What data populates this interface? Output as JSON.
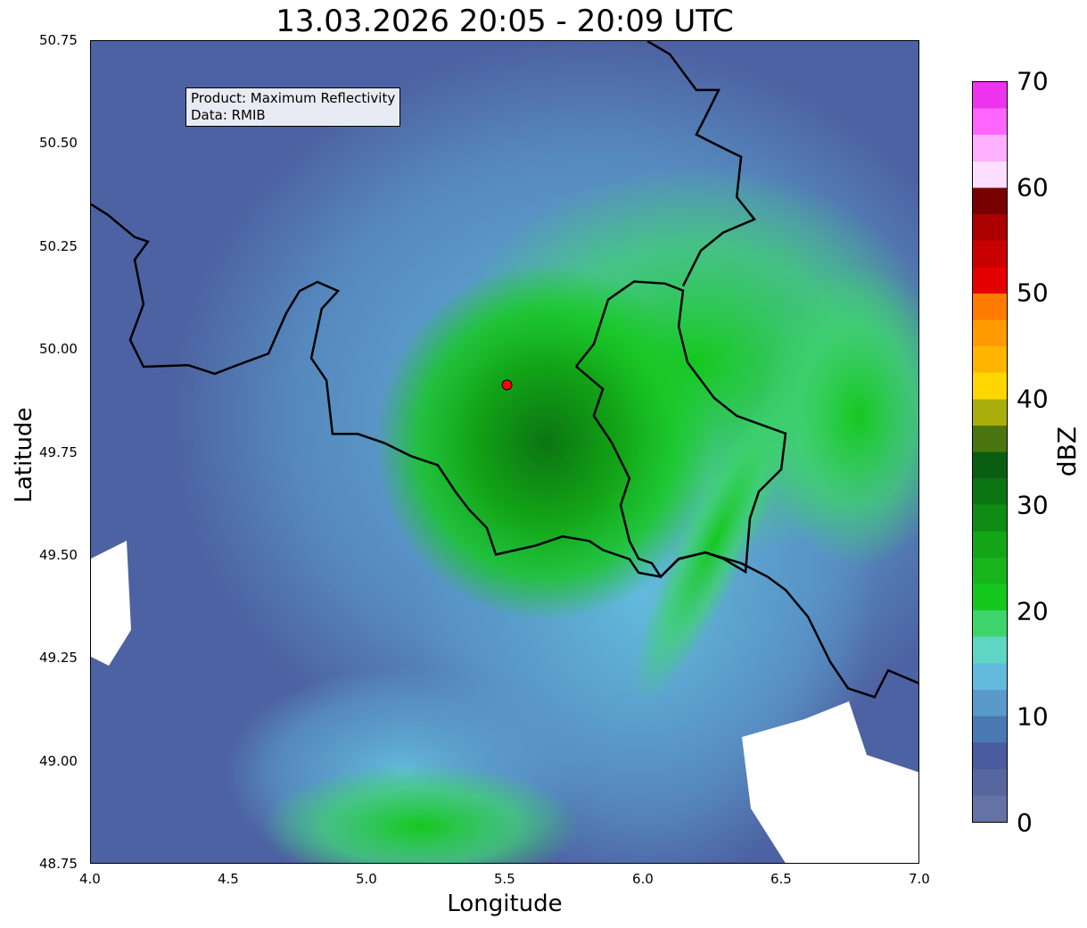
{
  "title": "13.03.2026 20:05 - 20:09 UTC",
  "info": {
    "product": "Product: Maximum Reflectivity",
    "data": "Data: RMIB"
  },
  "axes": {
    "xlabel": "Longitude",
    "ylabel": "Latitude",
    "xlim": [
      4.0,
      7.0
    ],
    "ylim": [
      48.75,
      50.75
    ],
    "xticks": [
      "4.0",
      "4.5",
      "5.0",
      "5.5",
      "6.0",
      "6.5",
      "7.0"
    ],
    "yticks": [
      "48.75",
      "49.00",
      "49.25",
      "49.50",
      "49.75",
      "50.00",
      "50.25",
      "50.50",
      "50.75"
    ]
  },
  "radar_site": {
    "lon": 5.505,
    "lat": 49.915,
    "color": "#ff0000"
  },
  "colorbar": {
    "label": "dBZ",
    "min": 0,
    "max": 70,
    "step": 2.5,
    "ticks": [
      "0",
      "10",
      "20",
      "30",
      "40",
      "50",
      "60",
      "70"
    ],
    "colors": [
      "#6572a5",
      "#56679f",
      "#4a5c9e",
      "#4a78b3",
      "#5a9acb",
      "#62bbdc",
      "#5fd6c4",
      "#3ed46c",
      "#14c81d",
      "#17b51b",
      "#13a517",
      "#0f8c14",
      "#0b7512",
      "#0a5e12",
      "#4a7510",
      "#aaae0b",
      "#ffd700",
      "#ffb500",
      "#ff9a00",
      "#ff7b00",
      "#e50000",
      "#c80000",
      "#aa0000",
      "#780000",
      "#ffdfff",
      "#ffb0ff",
      "#ff66ff",
      "#ee33ee"
    ]
  },
  "borders": {
    "national": [
      [
        4.0,
        50.354
      ],
      [
        4.061,
        50.328
      ],
      [
        4.158,
        50.274
      ],
      [
        4.206,
        50.263
      ],
      [
        4.158,
        50.219
      ],
      [
        4.19,
        50.111
      ],
      [
        4.142,
        50.024
      ],
      [
        4.19,
        49.959
      ],
      [
        4.352,
        49.963
      ],
      [
        4.448,
        49.942
      ],
      [
        4.529,
        49.963
      ],
      [
        4.642,
        49.991
      ],
      [
        4.706,
        50.089
      ],
      [
        4.755,
        50.143
      ],
      [
        4.819,
        50.165
      ],
      [
        4.894,
        50.143
      ],
      [
        4.835,
        50.1
      ],
      [
        4.797,
        49.98
      ],
      [
        4.852,
        49.926
      ],
      [
        4.874,
        49.796
      ],
      [
        4.965,
        49.796
      ],
      [
        5.061,
        49.774
      ],
      [
        5.158,
        49.742
      ],
      [
        5.255,
        49.72
      ],
      [
        5.319,
        49.655
      ],
      [
        5.368,
        49.612
      ],
      [
        5.432,
        49.568
      ],
      [
        5.465,
        49.503
      ],
      [
        5.61,
        49.525
      ],
      [
        5.706,
        49.547
      ],
      [
        5.803,
        49.536
      ],
      [
        5.852,
        49.514
      ],
      [
        5.9,
        49.503
      ],
      [
        5.948,
        49.492
      ],
      [
        5.981,
        49.459
      ],
      [
        6.061,
        49.449
      ],
      [
        6.126,
        49.492
      ],
      [
        6.223,
        49.508
      ],
      [
        6.352,
        49.482
      ],
      [
        6.448,
        49.449
      ],
      [
        6.513,
        49.417
      ],
      [
        6.594,
        49.352
      ],
      [
        6.674,
        49.243
      ],
      [
        6.739,
        49.178
      ],
      [
        6.835,
        49.157
      ],
      [
        6.884,
        49.222
      ],
      [
        7.0,
        49.189
      ]
    ],
    "luxembourg": [
      [
        5.755,
        49.96
      ],
      [
        5.819,
        50.014
      ],
      [
        5.871,
        50.122
      ],
      [
        5.965,
        50.166
      ],
      [
        6.077,
        50.161
      ],
      [
        6.142,
        50.144
      ],
      [
        6.126,
        50.057
      ],
      [
        6.158,
        49.97
      ],
      [
        6.255,
        49.883
      ],
      [
        6.336,
        49.84
      ],
      [
        6.513,
        49.797
      ],
      [
        6.497,
        49.71
      ],
      [
        6.416,
        49.656
      ],
      [
        6.384,
        49.591
      ],
      [
        6.368,
        49.461
      ],
      [
        6.287,
        49.493
      ],
      [
        6.223,
        49.508
      ],
      [
        6.126,
        49.493
      ],
      [
        6.061,
        49.449
      ],
      [
        6.029,
        49.482
      ],
      [
        5.981,
        49.493
      ],
      [
        5.948,
        49.536
      ],
      [
        5.916,
        49.623
      ],
      [
        5.948,
        49.688
      ],
      [
        5.884,
        49.775
      ],
      [
        5.819,
        49.84
      ],
      [
        5.852,
        49.905
      ],
      [
        5.755,
        49.96
      ]
    ],
    "north": [
      [
        6.013,
        50.75
      ],
      [
        6.094,
        50.718
      ],
      [
        6.19,
        50.631
      ],
      [
        6.271,
        50.631
      ],
      [
        6.223,
        50.566
      ],
      [
        6.19,
        50.523
      ],
      [
        6.287,
        50.49
      ],
      [
        6.352,
        50.469
      ],
      [
        6.336,
        50.371
      ],
      [
        6.4,
        50.317
      ],
      [
        6.287,
        50.285
      ],
      [
        6.206,
        50.241
      ],
      [
        6.142,
        50.155
      ]
    ]
  }
}
